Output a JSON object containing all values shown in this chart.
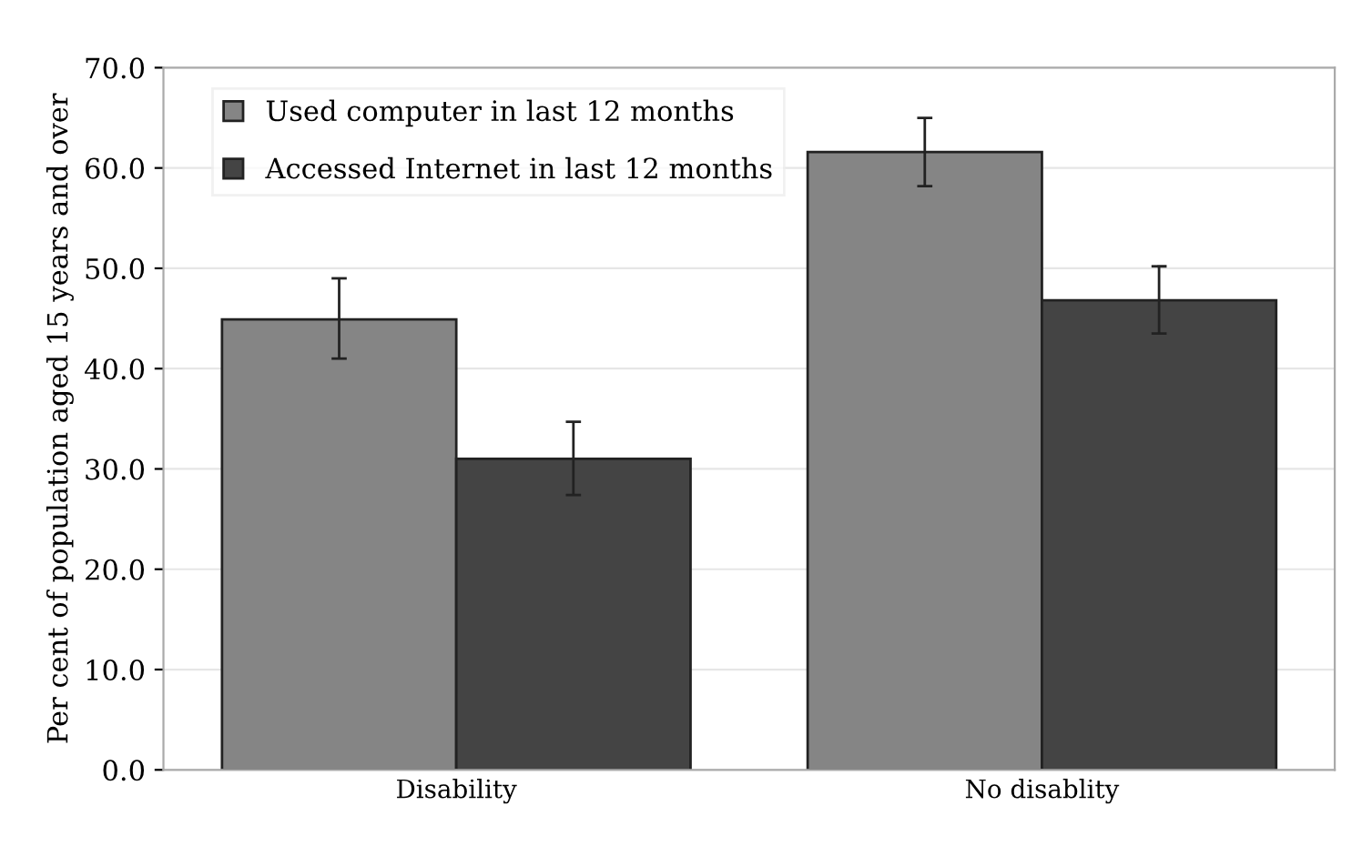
{
  "chart_data": {
    "type": "bar",
    "ylabel": "Per cent of population aged 15 years and over",
    "categories": [
      "Disability",
      "No disablity"
    ],
    "series": [
      {
        "name": "Used computer in last 12 months",
        "color": "#858585",
        "values": [
          44.9,
          61.6
        ],
        "errors": [
          [
            41.0,
            49.0
          ],
          [
            58.2,
            65.0
          ]
        ]
      },
      {
        "name": "Accessed Internet in last 12 months",
        "color": "#444444",
        "values": [
          31.0,
          46.8
        ],
        "errors": [
          [
            27.4,
            34.7
          ],
          [
            43.5,
            50.2
          ]
        ]
      }
    ],
    "ylim": [
      0,
      70
    ],
    "yticks": [
      {
        "value": 0,
        "label": "0.0"
      },
      {
        "value": 10,
        "label": "10.0"
      },
      {
        "value": 20,
        "label": "20.0"
      },
      {
        "value": 30,
        "label": "30.0"
      },
      {
        "value": 40,
        "label": "40.0"
      },
      {
        "value": 50,
        "label": "50.0"
      },
      {
        "value": 60,
        "label": "60.0"
      },
      {
        "value": 70,
        "label": "70.0"
      }
    ],
    "grid": "y",
    "legend": "top left"
  }
}
